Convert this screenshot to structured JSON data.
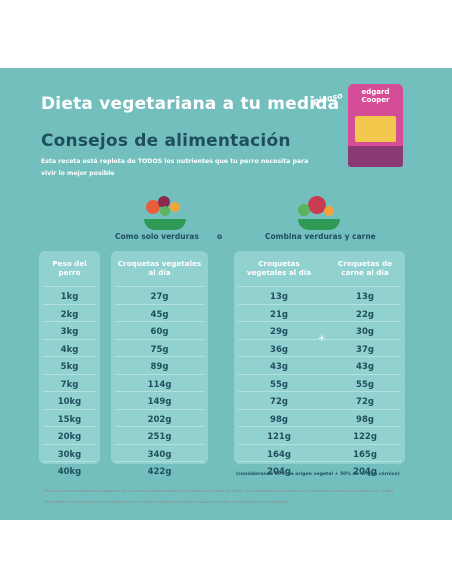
{
  "title_line1": "Dieta vegetariana a tu medida",
  "title_line2": "Consejos de alimentación",
  "description": "Esta receta está repleta de TODOS los nutrientes que tu perro necesita para vivir lo mejor posible",
  "product": {
    "tag": "pienso",
    "brand": "edgard Cooper",
    "bag_color": "#d44d96"
  },
  "sections": {
    "left": "Como solo verduras",
    "or": "o",
    "right": "Combina verduras y carne"
  },
  "table": {
    "headers": {
      "weight": "Peso del perro",
      "veg_only": "Croquetas vegetales al día",
      "veg_mixed": "Croquetas vegetales al día",
      "meat": "Croquetas de carne al día"
    },
    "plus": "+",
    "rows": [
      {
        "weight": "1kg",
        "veg_only": "27g",
        "veg_mixed": "13g",
        "meat": "13g"
      },
      {
        "weight": "2kg",
        "veg_only": "45g",
        "veg_mixed": "21g",
        "meat": "22g"
      },
      {
        "weight": "3kg",
        "veg_only": "60g",
        "veg_mixed": "29g",
        "meat": "30g"
      },
      {
        "weight": "4kg",
        "veg_only": "75g",
        "veg_mixed": "36g",
        "meat": "37g"
      },
      {
        "weight": "5kg",
        "veg_only": "89g",
        "veg_mixed": "43g",
        "meat": "43g"
      },
      {
        "weight": "7kg",
        "veg_only": "114g",
        "veg_mixed": "55g",
        "meat": "55g"
      },
      {
        "weight": "10kg",
        "veg_only": "149g",
        "veg_mixed": "72g",
        "meat": "72g"
      },
      {
        "weight": "15kg",
        "veg_only": "202g",
        "veg_mixed": "98g",
        "meat": "98g"
      },
      {
        "weight": "20kg",
        "veg_only": "251g",
        "veg_mixed": "121g",
        "meat": "122g"
      },
      {
        "weight": "30kg",
        "veg_only": "340g",
        "veg_mixed": "164g",
        "meat": "165g"
      },
      {
        "weight": "40kg",
        "veg_only": "422g",
        "veg_mixed": "204g",
        "meat": "204g"
      }
    ]
  },
  "note": "(considerando 50% de origen vegetal + 50% de origen cárnico)",
  "footnotes": [
    "*Para una dieta completamente vegetariana con una nueva completa después de un periodo de transición de 4 días. Es recomendable que consultes con tu veterinario antes de realizar cambios en la dieta.",
    "**Esta tabla es sólo una guía ya que cada perro es único. Ponte en contacto con Edgard & Cooper para saber otras alternativas más detalladas."
  ],
  "colors": {
    "background": "#73bfbd",
    "panel": "#91d1cf",
    "dark_text": "#1f4f5e",
    "bowl": "#2f9a56"
  }
}
